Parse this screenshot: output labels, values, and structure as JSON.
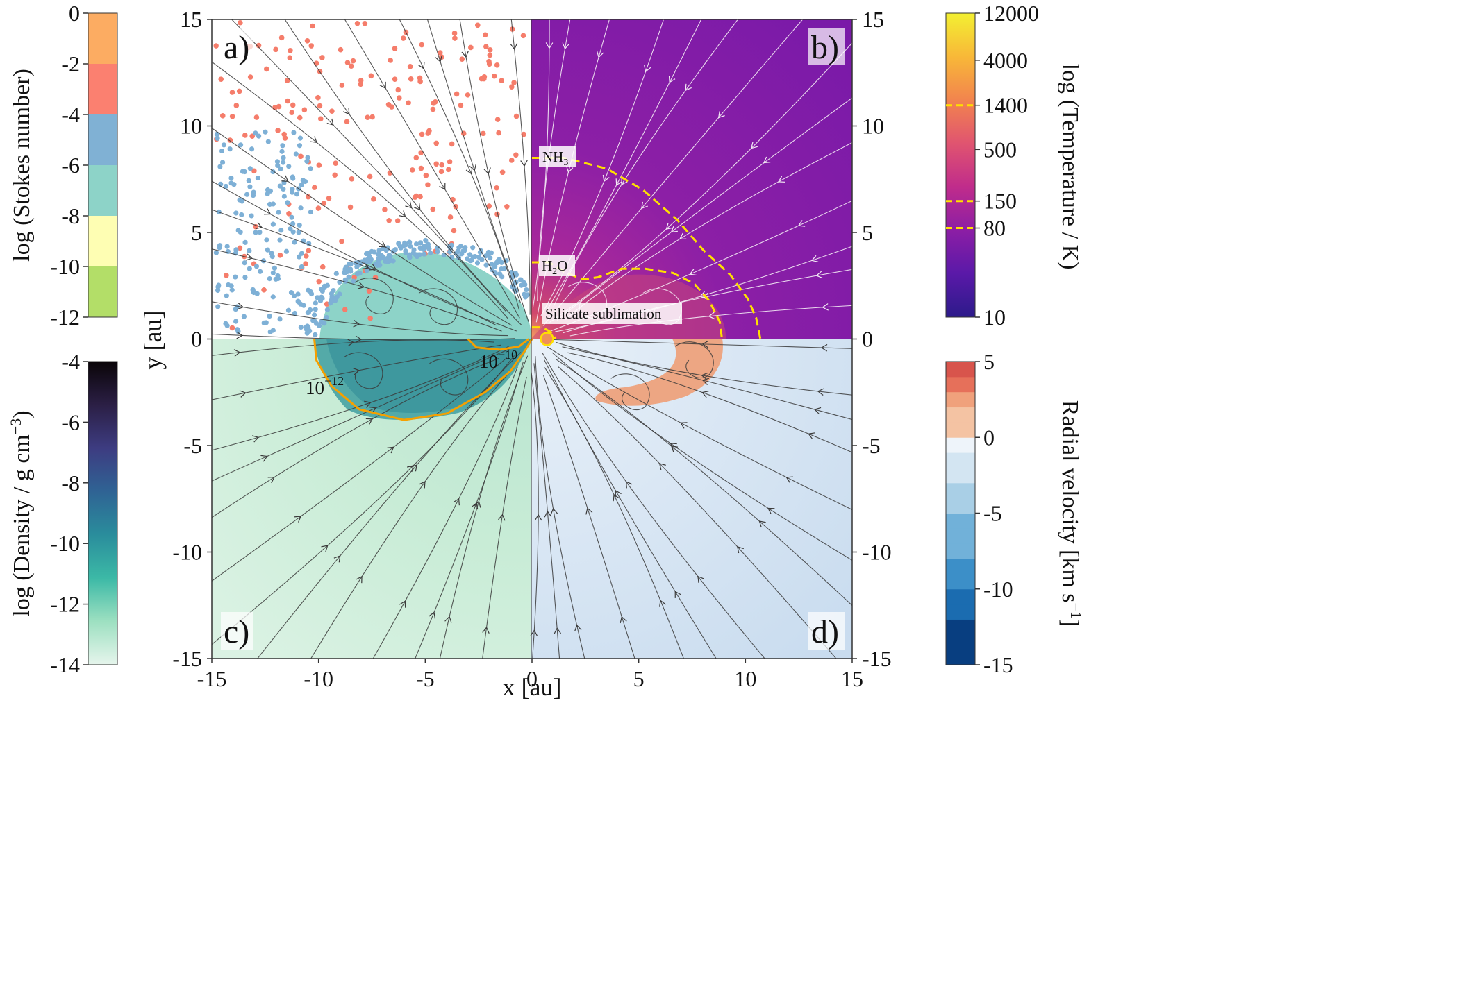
{
  "chart_data": {
    "type": "scatter",
    "axes": {
      "xlabel": "x [au]",
      "ylabel": "y [au]",
      "xlim": [
        -15,
        15
      ],
      "ylim": [
        -15,
        15
      ],
      "xticks": [
        "-15",
        "-10",
        "-5",
        "0",
        "5",
        "10",
        "15"
      ],
      "yticks_left": [
        "-15",
        "-10",
        "-5",
        "0",
        "5",
        "10",
        "15"
      ],
      "yticks_right": [
        "-15",
        "-10",
        "-5",
        "0",
        "5",
        "10",
        "15"
      ]
    },
    "panels": [
      {
        "id": "a",
        "label": "a)",
        "quadrant": "top-left",
        "quantity": "Stokes number (dust particles)"
      },
      {
        "id": "b",
        "label": "b)",
        "quadrant": "top-right",
        "quantity": "Temperature"
      },
      {
        "id": "c",
        "label": "c)",
        "quadrant": "bottom-left",
        "quantity": "Density"
      },
      {
        "id": "d",
        "label": "d)",
        "quadrant": "bottom-right",
        "quantity": "Radial velocity"
      }
    ],
    "annotations": {
      "nh3": "NH",
      "nh3_sub": "3",
      "h2o_pre": "H",
      "h2o_sub": "2",
      "h2o_post": "O",
      "silicate": "Silicate sublimation",
      "contour_low": "10",
      "contour_low_exp": "−12",
      "contour_high": "10",
      "contour_high_exp": "−10"
    },
    "contours": {
      "density": [
        {
          "level": "10^-12",
          "color": "#f5a000",
          "points": [
            [
              -10.2,
              0
            ],
            [
              -10.1,
              -1
            ],
            [
              -9.4,
              -2.2
            ],
            [
              -8.1,
              -3.3
            ],
            [
              -6,
              -3.8
            ],
            [
              -4,
              -3.5
            ],
            [
              -2.2,
              -2.5
            ],
            [
              -1,
              -1.5
            ],
            [
              -0.3,
              -0.5
            ],
            [
              0,
              0
            ]
          ]
        },
        {
          "level": "10^-10",
          "color": "#f5a000",
          "points": [
            [
              -3,
              0
            ],
            [
              -2.6,
              -0.4
            ],
            [
              -1.5,
              -0.5
            ],
            [
              -0.6,
              -0.35
            ],
            [
              -0.15,
              0
            ]
          ]
        }
      ],
      "temperature": [
        {
          "level": "NH3",
          "color": "#ffe000",
          "points": [
            [
              0,
              8.5
            ],
            [
              1.5,
              8.5
            ],
            [
              3.5,
              8
            ],
            [
              5.2,
              7
            ],
            [
              6.8,
              5.6
            ],
            [
              8,
              4.2
            ],
            [
              9.3,
              3
            ],
            [
              10.1,
              1.9
            ],
            [
              10.5,
              1
            ],
            [
              10.7,
              0
            ]
          ]
        },
        {
          "level": "H2O",
          "color": "#ffe000",
          "points": [
            [
              0,
              3.6
            ],
            [
              0.8,
              3.6
            ],
            [
              1.6,
              3.1
            ],
            [
              2.4,
              2.8
            ],
            [
              3.1,
              2.9
            ],
            [
              4.2,
              3.3
            ],
            [
              5.3,
              3.3
            ],
            [
              6.6,
              3.1
            ],
            [
              7.6,
              2.6
            ],
            [
              8.3,
              1.8
            ],
            [
              8.8,
              0.8
            ],
            [
              8.9,
              0
            ]
          ]
        },
        {
          "level": "Silicate sublimation",
          "color": "#ffe000",
          "points": [
            [
              0,
              0.55
            ],
            [
              0.5,
              0.55
            ],
            [
              1,
              0.25
            ],
            [
              1.1,
              0
            ]
          ]
        }
      ]
    },
    "colorbars": {
      "stokes": {
        "label": "log (Stokes number)",
        "ticks": [
          "0",
          "-2",
          "-4",
          "-6",
          "-8",
          "-10",
          "-12"
        ],
        "range": [
          -12,
          0
        ],
        "bins": [
          {
            "from": -2,
            "to": 0,
            "color": "#fcac62"
          },
          {
            "from": -4,
            "to": -2,
            "color": "#fb8070"
          },
          {
            "from": -6,
            "to": -4,
            "color": "#80b1d4"
          },
          {
            "from": -8,
            "to": -6,
            "color": "#8dd3c8"
          },
          {
            "from": -10,
            "to": -8,
            "color": "#fefeb3"
          },
          {
            "from": -12,
            "to": -10,
            "color": "#b3de68"
          }
        ]
      },
      "density": {
        "label": "log (Density / g cm",
        "label_exp": "−3",
        "label_end": ")",
        "ticks": [
          "-4",
          "-6",
          "-8",
          "-10",
          "-12",
          "-14"
        ],
        "range": [
          -14,
          -4
        ],
        "colors": [
          "#e6f5ec",
          "#9de0c1",
          "#3cb9a6",
          "#2a8d9c",
          "#2f6394",
          "#3d3c81",
          "#2b1f45",
          "#0a0508"
        ]
      },
      "temperature": {
        "label": "log (Temperature / K)",
        "ticks": [
          "12000",
          "4000",
          "1400",
          "500",
          "150",
          "80",
          "10"
        ],
        "range_logT": [
          1,
          4.079
        ],
        "tick_values": [
          12000,
          4000,
          1400,
          500,
          150,
          80,
          10
        ],
        "dashed_levels": [
          1400,
          150,
          80
        ],
        "colors": [
          "#2c1a8a",
          "#5a19a8",
          "#8c1ea5",
          "#c02c8b",
          "#e05470",
          "#f2844e",
          "#f8b838",
          "#f3f032"
        ]
      },
      "velocity": {
        "label": "Radial velocity [km s",
        "label_exp": "−1",
        "label_end": "]",
        "ticks": [
          "5",
          "0",
          "-5",
          "-10",
          "-15"
        ],
        "tick_values": [
          5,
          0,
          -5,
          -10,
          -15
        ],
        "range": [
          -15,
          5
        ],
        "neg_colors": [
          "#083e80",
          "#1b6cb0",
          "#3c8fc8",
          "#71b1d9",
          "#a9cfe6",
          "#d3e5f2",
          "#eef4fa"
        ],
        "pos_colors": [
          "#f4c3a3",
          "#f0a17c",
          "#e6705a",
          "#d8544c"
        ]
      }
    }
  }
}
